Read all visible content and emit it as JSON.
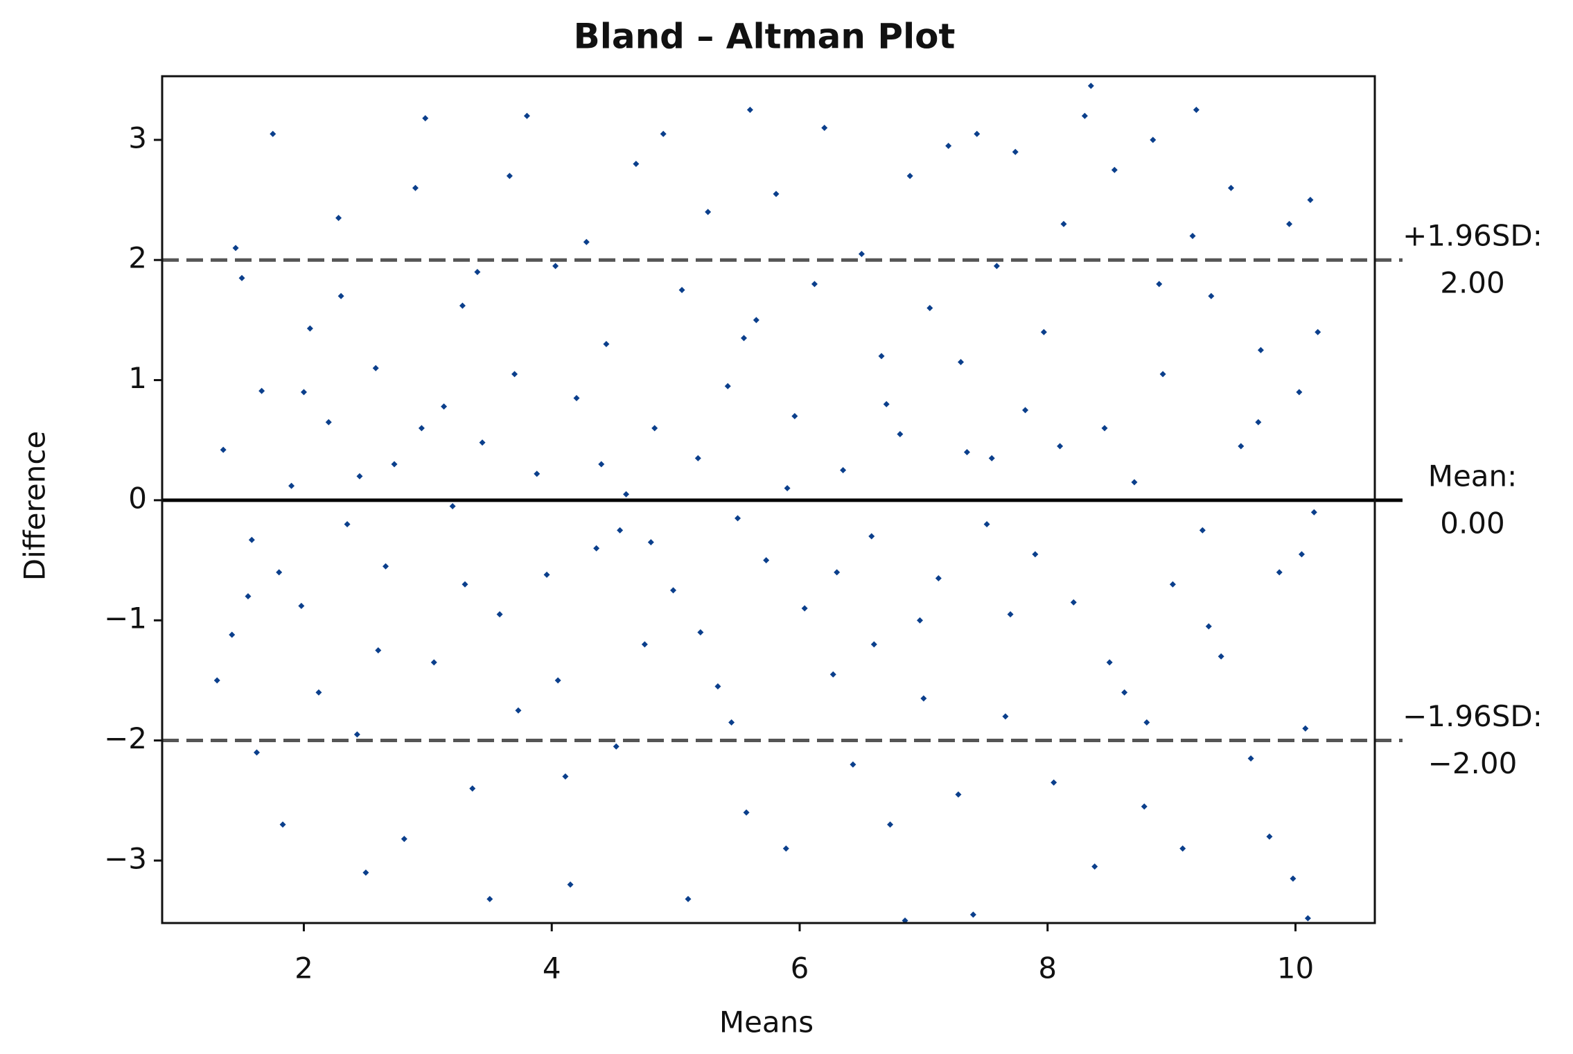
{
  "chart_data": {
    "type": "scatter",
    "title": "Bland – Altman Plot",
    "x_label": "Means",
    "y_label": "Difference",
    "color": "#0b3f8c",
    "xlim": [
      0.857,
      10.64
    ],
    "ylim": [
      -3.52,
      3.53
    ],
    "xticks": [
      2,
      4,
      6,
      8,
      10
    ],
    "yticks": [
      {
        "value": -3,
        "label": "−3"
      },
      {
        "value": -2,
        "label": "−2"
      },
      {
        "value": -1,
        "label": "−1"
      },
      0,
      1,
      2,
      3
    ],
    "grid": false,
    "reference_lines": [
      {
        "label": "+1.96SD:",
        "value": 2,
        "value_label": "2.00",
        "style": "dashed",
        "color": "#555555"
      },
      {
        "label": "Mean:",
        "value": 0,
        "value_label": "0.00",
        "style": "solid",
        "color": "#000000"
      },
      {
        "label": "−1.96SD:",
        "value": -2,
        "value_label": "−2.00",
        "style": "dashed",
        "color": "#555555"
      }
    ],
    "x": [
      1.35,
      1.42,
      1.5,
      1.58,
      1.66,
      1.75,
      1.83,
      1.9,
      1.98,
      2.05,
      2.12,
      2.2,
      2.28,
      2.35,
      2.43,
      2.5,
      2.58,
      2.66,
      2.73,
      2.81,
      2.9,
      2.98,
      3.05,
      3.13,
      3.2,
      3.28,
      3.36,
      3.44,
      3.5,
      3.58,
      3.66,
      3.73,
      3.8,
      3.88,
      3.96,
      4.03,
      4.11,
      4.15,
      4.2,
      4.28,
      4.36,
      4.44,
      4.52,
      4.6,
      4.68,
      4.75,
      4.83,
      4.9,
      4.98,
      5.05,
      5.1,
      5.18,
      5.26,
      5.34,
      5.42,
      5.5,
      5.57,
      5.6,
      5.65,
      5.73,
      5.81,
      5.89,
      5.96,
      6.04,
      6.12,
      6.2,
      6.27,
      6.35,
      6.43,
      6.5,
      6.58,
      6.66,
      6.73,
      6.81,
      6.85,
      6.89,
      6.97,
      7.05,
      7.12,
      7.2,
      7.28,
      7.35,
      7.4,
      7.43,
      7.51,
      7.59,
      7.66,
      7.74,
      7.82,
      7.9,
      7.97,
      8.05,
      8.13,
      8.21,
      8.3,
      8.35,
      8.38,
      8.46,
      8.54,
      8.62,
      8.7,
      8.78,
      8.85,
      8.93,
      9.01,
      9.09,
      9.17,
      9.2,
      9.25,
      9.32,
      9.4,
      9.48,
      9.56,
      9.64,
      9.72,
      9.79,
      9.87,
      9.95,
      9.98,
      10.03,
      10.08,
      10.1,
      10.12,
      10.15,
      10.18,
      1.3,
      1.45,
      1.62,
      1.8,
      2.0,
      2.3,
      2.6,
      2.95,
      3.3,
      3.7,
      4.05,
      4.4,
      4.8,
      5.2,
      5.55,
      5.9,
      6.3,
      6.7,
      7.0,
      7.3,
      7.7,
      8.1,
      8.5,
      8.9,
      9.3,
      9.7,
      10.05,
      1.55,
      2.45,
      3.4,
      4.55,
      5.45,
      6.6,
      7.55,
      8.8
    ],
    "values": [
      0.42,
      -1.12,
      1.85,
      -0.33,
      0.91,
      3.05,
      -2.7,
      0.12,
      -0.88,
      1.43,
      -1.6,
      0.65,
      2.35,
      -0.2,
      -1.95,
      -3.1,
      1.1,
      -0.55,
      0.3,
      -2.82,
      2.6,
      3.18,
      -1.35,
      0.78,
      -0.05,
      1.62,
      -2.4,
      0.48,
      -3.32,
      -0.95,
      2.7,
      -1.75,
      3.2,
      0.22,
      -0.62,
      1.95,
      -2.3,
      -3.2,
      0.85,
      2.15,
      -0.4,
      1.3,
      -2.05,
      0.05,
      2.8,
      -1.2,
      0.6,
      3.05,
      -0.75,
      1.75,
      -3.32,
      0.35,
      2.4,
      -1.55,
      0.95,
      -0.15,
      -2.6,
      3.25,
      1.5,
      -0.5,
      2.55,
      -2.9,
      0.7,
      -0.9,
      1.8,
      3.1,
      -1.45,
      0.25,
      -2.2,
      2.05,
      -0.3,
      1.2,
      -2.7,
      0.55,
      -3.5,
      2.7,
      -1.0,
      1.6,
      -0.65,
      2.95,
      -2.45,
      0.4,
      -3.45,
      3.05,
      -0.2,
      1.95,
      -1.8,
      2.9,
      0.75,
      -0.45,
      1.4,
      -2.35,
      2.3,
      -0.85,
      3.2,
      3.45,
      -3.05,
      0.6,
      2.75,
      -1.6,
      0.15,
      -2.55,
      3.0,
      1.05,
      -0.7,
      -2.9,
      2.2,
      3.25,
      -0.25,
      1.7,
      -1.3,
      2.6,
      0.45,
      -2.15,
      1.25,
      -2.8,
      -0.6,
      2.3,
      -3.15,
      0.9,
      -1.9,
      -3.48,
      2.5,
      -0.1,
      1.4,
      -1.5,
      2.1,
      -2.1,
      -0.6,
      0.9,
      1.7,
      -1.25,
      0.6,
      -0.7,
      1.05,
      -1.5,
      0.3,
      -0.35,
      -1.1,
      1.35,
      0.1,
      -0.6,
      0.8,
      -1.65,
      1.15,
      -0.95,
      0.45,
      -1.35,
      1.8,
      -1.05,
      0.65,
      -0.45,
      -0.8,
      0.2,
      1.9,
      -0.25,
      -1.85,
      -1.2,
      0.35,
      -1.85
    ]
  }
}
